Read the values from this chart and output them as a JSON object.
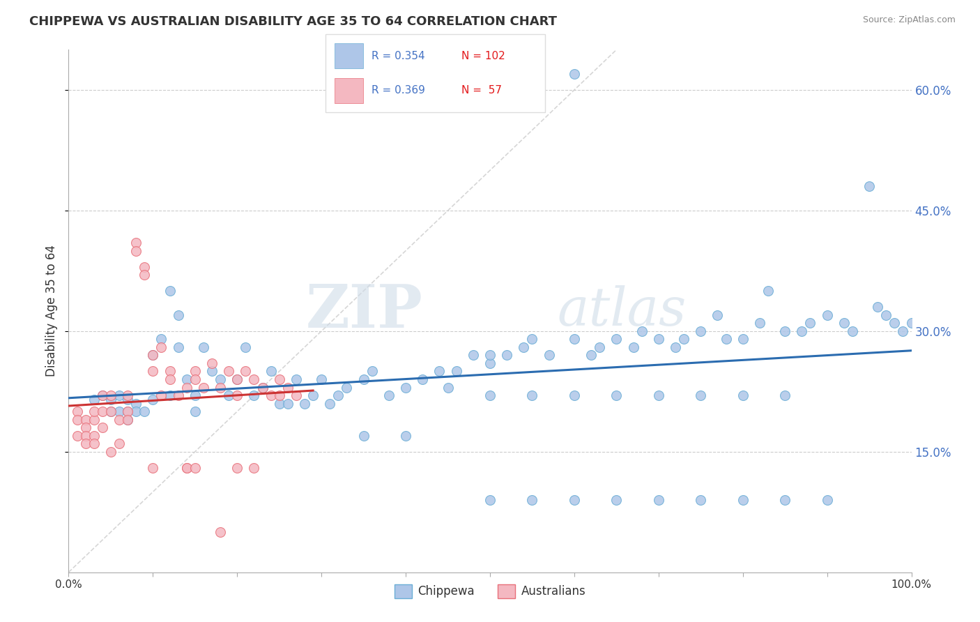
{
  "title": "CHIPPEWA VS AUSTRALIAN DISABILITY AGE 35 TO 64 CORRELATION CHART",
  "source": "Source: ZipAtlas.com",
  "ylabel": "Disability Age 35 to 64",
  "xlim": [
    0.0,
    1.0
  ],
  "ylim": [
    0.0,
    0.65
  ],
  "xticks": [
    0.0,
    0.1,
    0.2,
    0.3,
    0.4,
    0.5,
    0.6,
    0.7,
    0.8,
    0.9,
    1.0
  ],
  "xticklabels": [
    "0.0%",
    "",
    "",
    "",
    "",
    "",
    "",
    "",
    "",
    "",
    "100.0%"
  ],
  "yticks": [
    0.15,
    0.3,
    0.45,
    0.6
  ],
  "yticklabels": [
    "15.0%",
    "30.0%",
    "45.0%",
    "60.0%"
  ],
  "chippewa_color": "#aec6e8",
  "chippewa_edge_color": "#6baed6",
  "australians_color": "#f4b8c1",
  "australians_edge_color": "#e8707a",
  "chippewa_line_color": "#2b6cb0",
  "australians_line_color": "#cc3333",
  "diag_line_color": "#cccccc",
  "legend_R_chippewa": "0.354",
  "legend_N_chippewa": "102",
  "legend_R_australians": "0.369",
  "legend_N_australians": " 57",
  "watermark_zip": "ZIP",
  "watermark_atlas": "atlas",
  "chippewa_x": [
    0.03,
    0.04,
    0.05,
    0.05,
    0.06,
    0.06,
    0.07,
    0.07,
    0.07,
    0.08,
    0.08,
    0.09,
    0.1,
    0.1,
    0.11,
    0.12,
    0.12,
    0.13,
    0.13,
    0.14,
    0.15,
    0.15,
    0.16,
    0.17,
    0.18,
    0.19,
    0.2,
    0.21,
    0.22,
    0.23,
    0.24,
    0.25,
    0.26,
    0.27,
    0.28,
    0.29,
    0.3,
    0.31,
    0.32,
    0.33,
    0.35,
    0.36,
    0.38,
    0.4,
    0.42,
    0.44,
    0.46,
    0.48,
    0.5,
    0.5,
    0.52,
    0.54,
    0.55,
    0.57,
    0.6,
    0.6,
    0.62,
    0.63,
    0.65,
    0.67,
    0.68,
    0.7,
    0.72,
    0.73,
    0.75,
    0.77,
    0.78,
    0.8,
    0.82,
    0.83,
    0.85,
    0.87,
    0.88,
    0.9,
    0.92,
    0.93,
    0.95,
    0.96,
    0.97,
    0.98,
    0.99,
    1.0,
    0.45,
    0.5,
    0.55,
    0.6,
    0.65,
    0.7,
    0.75,
    0.8,
    0.85,
    0.9,
    0.35,
    0.4,
    0.5,
    0.55,
    0.6,
    0.65,
    0.7,
    0.75,
    0.8,
    0.85
  ],
  "chippewa_y": [
    0.215,
    0.22,
    0.2,
    0.215,
    0.2,
    0.22,
    0.19,
    0.2,
    0.215,
    0.21,
    0.2,
    0.2,
    0.215,
    0.27,
    0.29,
    0.35,
    0.22,
    0.32,
    0.28,
    0.24,
    0.22,
    0.2,
    0.28,
    0.25,
    0.24,
    0.22,
    0.24,
    0.28,
    0.22,
    0.23,
    0.25,
    0.21,
    0.21,
    0.24,
    0.21,
    0.22,
    0.24,
    0.21,
    0.22,
    0.23,
    0.24,
    0.25,
    0.22,
    0.23,
    0.24,
    0.25,
    0.25,
    0.27,
    0.26,
    0.27,
    0.27,
    0.28,
    0.29,
    0.27,
    0.29,
    0.62,
    0.27,
    0.28,
    0.29,
    0.28,
    0.3,
    0.29,
    0.28,
    0.29,
    0.3,
    0.32,
    0.29,
    0.29,
    0.31,
    0.35,
    0.3,
    0.3,
    0.31,
    0.32,
    0.31,
    0.3,
    0.48,
    0.33,
    0.32,
    0.31,
    0.3,
    0.31,
    0.23,
    0.09,
    0.09,
    0.09,
    0.09,
    0.09,
    0.09,
    0.09,
    0.09,
    0.09,
    0.17,
    0.17,
    0.22,
    0.22,
    0.22,
    0.22,
    0.22,
    0.22,
    0.22,
    0.22
  ],
  "australians_x": [
    0.01,
    0.01,
    0.01,
    0.02,
    0.02,
    0.02,
    0.02,
    0.03,
    0.03,
    0.03,
    0.03,
    0.04,
    0.04,
    0.04,
    0.05,
    0.05,
    0.05,
    0.06,
    0.06,
    0.07,
    0.07,
    0.07,
    0.08,
    0.08,
    0.09,
    0.09,
    0.1,
    0.1,
    0.11,
    0.11,
    0.12,
    0.12,
    0.13,
    0.14,
    0.14,
    0.15,
    0.15,
    0.16,
    0.17,
    0.18,
    0.19,
    0.2,
    0.2,
    0.21,
    0.22,
    0.23,
    0.24,
    0.25,
    0.25,
    0.26,
    0.27,
    0.14,
    0.15,
    0.18,
    0.2,
    0.22,
    0.1
  ],
  "australians_y": [
    0.2,
    0.19,
    0.17,
    0.19,
    0.18,
    0.17,
    0.16,
    0.19,
    0.2,
    0.17,
    0.16,
    0.22,
    0.2,
    0.18,
    0.22,
    0.2,
    0.15,
    0.19,
    0.16,
    0.22,
    0.2,
    0.19,
    0.41,
    0.4,
    0.38,
    0.37,
    0.27,
    0.25,
    0.28,
    0.22,
    0.25,
    0.24,
    0.22,
    0.23,
    0.13,
    0.25,
    0.24,
    0.23,
    0.26,
    0.23,
    0.25,
    0.24,
    0.22,
    0.25,
    0.24,
    0.23,
    0.22,
    0.24,
    0.22,
    0.23,
    0.22,
    0.13,
    0.13,
    0.05,
    0.13,
    0.13,
    0.13
  ],
  "chippewa_line_x": [
    0.0,
    1.0
  ],
  "chippewa_line_y": [
    0.205,
    0.305
  ],
  "australians_line_x": [
    0.0,
    0.27
  ],
  "australians_line_y": [
    0.195,
    0.265
  ],
  "diag_line_x": [
    0.0,
    0.65
  ],
  "diag_line_y": [
    0.0,
    0.65
  ]
}
